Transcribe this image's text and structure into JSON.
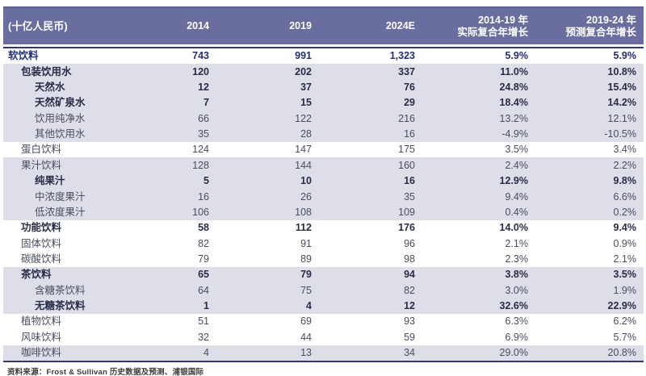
{
  "chart_data": {
    "type": "table",
    "unit_label": "(十亿人民币)",
    "columns": [
      "2014",
      "2019",
      "2024E",
      "2014-19 年\n实际复合年增长",
      "2019-24 年\n预测复合年增长"
    ],
    "rows": [
      {
        "label": "软饮料",
        "indent": 0,
        "bold": true,
        "total": true,
        "shade": false,
        "values": [
          "743",
          "991",
          "1,323",
          "5.9%",
          "5.9%"
        ]
      },
      {
        "label": "包装饮用水",
        "indent": 1,
        "bold": true,
        "total": false,
        "shade": true,
        "values": [
          "120",
          "202",
          "337",
          "11.0%",
          "10.8%"
        ]
      },
      {
        "label": "天然水",
        "indent": 2,
        "bold": true,
        "total": false,
        "shade": true,
        "values": [
          "12",
          "37",
          "76",
          "24.8%",
          "15.4%"
        ]
      },
      {
        "label": "天然矿泉水",
        "indent": 2,
        "bold": true,
        "total": false,
        "shade": true,
        "values": [
          "7",
          "15",
          "29",
          "18.4%",
          "14.2%"
        ]
      },
      {
        "label": "饮用纯净水",
        "indent": 2,
        "bold": false,
        "total": false,
        "shade": true,
        "values": [
          "66",
          "122",
          "216",
          "13.2%",
          "12.1%"
        ]
      },
      {
        "label": "其他饮用水",
        "indent": 2,
        "bold": false,
        "total": false,
        "shade": true,
        "values": [
          "35",
          "28",
          "16",
          "-4.9%",
          "-10.5%"
        ]
      },
      {
        "label": "蛋白饮料",
        "indent": 1,
        "bold": false,
        "total": false,
        "shade": false,
        "values": [
          "124",
          "147",
          "175",
          "3.5%",
          "3.4%"
        ]
      },
      {
        "label": "果汁饮料",
        "indent": 1,
        "bold": false,
        "total": false,
        "shade": true,
        "values": [
          "128",
          "144",
          "160",
          "2.4%",
          "2.2%"
        ]
      },
      {
        "label": "纯果汁",
        "indent": 2,
        "bold": true,
        "total": false,
        "shade": true,
        "values": [
          "5",
          "10",
          "16",
          "12.9%",
          "9.8%"
        ]
      },
      {
        "label": "中浓度果汁",
        "indent": 2,
        "bold": false,
        "total": false,
        "shade": true,
        "values": [
          "16",
          "26",
          "35",
          "9.4%",
          "6.6%"
        ]
      },
      {
        "label": "低浓度果汁",
        "indent": 2,
        "bold": false,
        "total": false,
        "shade": true,
        "values": [
          "106",
          "108",
          "109",
          "0.4%",
          "0.2%"
        ]
      },
      {
        "label": "功能饮料",
        "indent": 1,
        "bold": true,
        "total": false,
        "shade": false,
        "values": [
          "58",
          "112",
          "176",
          "14.0%",
          "9.4%"
        ]
      },
      {
        "label": "固体饮料",
        "indent": 1,
        "bold": false,
        "total": false,
        "shade": false,
        "values": [
          "82",
          "91",
          "96",
          "2.1%",
          "0.9%"
        ]
      },
      {
        "label": "碳酸饮料",
        "indent": 1,
        "bold": false,
        "total": false,
        "shade": false,
        "values": [
          "79",
          "89",
          "98",
          "2.3%",
          "2.1%"
        ]
      },
      {
        "label": "茶饮料",
        "indent": 1,
        "bold": true,
        "total": false,
        "shade": true,
        "values": [
          "65",
          "79",
          "94",
          "3.8%",
          "3.5%"
        ]
      },
      {
        "label": "含糖茶饮料",
        "indent": 2,
        "bold": false,
        "total": false,
        "shade": true,
        "values": [
          "64",
          "75",
          "82",
          "3.0%",
          "1.9%"
        ]
      },
      {
        "label": "无糖茶饮料",
        "indent": 2,
        "bold": true,
        "total": false,
        "shade": true,
        "values": [
          "1",
          "4",
          "12",
          "32.6%",
          "22.9%"
        ]
      },
      {
        "label": "植物饮料",
        "indent": 1,
        "bold": false,
        "total": false,
        "shade": false,
        "values": [
          "51",
          "69",
          "93",
          "6.3%",
          "6.2%"
        ]
      },
      {
        "label": "风味饮料",
        "indent": 1,
        "bold": false,
        "total": false,
        "shade": false,
        "values": [
          "32",
          "44",
          "59",
          "6.9%",
          "5.7%"
        ]
      },
      {
        "label": "咖啡饮料",
        "indent": 1,
        "bold": false,
        "total": false,
        "shade": true,
        "values": [
          "4",
          "13",
          "34",
          "29.0%",
          "20.8%"
        ]
      }
    ]
  },
  "footer": {
    "source": "资料来源：Frost & Sullivan 历史数据及预测、浦银国际"
  },
  "colors": {
    "header_bg": "#6a6e9e",
    "stripe": "#dedee9",
    "total_text": "#233070",
    "bold_text": "#272c49",
    "regular_text": "#474d61",
    "rule": "#333a6b"
  }
}
